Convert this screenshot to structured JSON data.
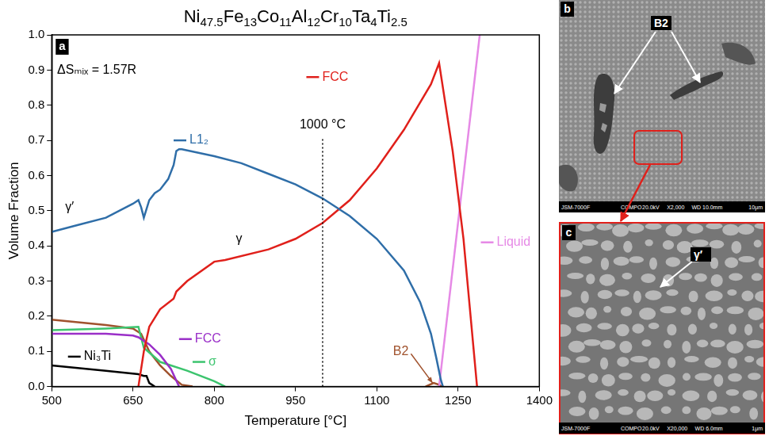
{
  "chart_data": {
    "type": "line",
    "title": "Ni47.5Fe13Co11Al12Cr10Ta4Ti2.5",
    "panel": "a",
    "x_label": "Temperature [°C]",
    "y_label": "Volume Fraction",
    "xlim": [
      500,
      1400
    ],
    "xticks": [
      500,
      650,
      800,
      950,
      1100,
      1250,
      1400
    ],
    "ylim": [
      0,
      1
    ],
    "yticks": [
      {
        "value": 0,
        "label": "0.0"
      },
      0.1,
      0.2,
      0.3,
      0.4,
      0.5,
      0.6,
      0.7,
      0.8,
      0.9,
      {
        "value": 1,
        "label": "1.0"
      }
    ],
    "grid": false,
    "series": [
      {
        "name": "L1₂",
        "color": "#2f6ea8",
        "label_at": [
          725,
          0.7
        ],
        "x": [
          500,
          550,
          600,
          650,
          660,
          665,
          670,
          680,
          690,
          700,
          715,
          725,
          730,
          735,
          740,
          800,
          850,
          900,
          950,
          1000,
          1050,
          1100,
          1150,
          1180,
          1200,
          1210,
          1218,
          1222
        ],
        "values": [
          0.44,
          0.46,
          0.48,
          0.52,
          0.53,
          0.51,
          0.48,
          0.53,
          0.55,
          0.56,
          0.59,
          0.63,
          0.67,
          0.675,
          0.675,
          0.655,
          0.635,
          0.605,
          0.575,
          0.535,
          0.485,
          0.42,
          0.33,
          0.24,
          0.15,
          0.08,
          0.02,
          0
        ]
      },
      {
        "name": "FCC",
        "color": "#e0201b",
        "label_at": [
          970,
          0.88
        ],
        "x": [
          660,
          670,
          680,
          700,
          725,
          730,
          750,
          800,
          820,
          900,
          950,
          1000,
          1050,
          1100,
          1150,
          1200,
          1215,
          1240,
          1260,
          1285
        ],
        "values": [
          0,
          0.1,
          0.17,
          0.22,
          0.25,
          0.27,
          0.3,
          0.355,
          0.36,
          0.39,
          0.42,
          0.465,
          0.53,
          0.62,
          0.73,
          0.86,
          0.92,
          0.67,
          0.42,
          0
        ]
      },
      {
        "name": "Liquid",
        "color": "#e68ae6",
        "label_at": [
          1292,
          0.41
        ],
        "x": [
          1215,
          1290
        ],
        "values": [
          0,
          1
        ]
      },
      {
        "name": "FCC",
        "color": "#9a2fc8",
        "label_at": [
          735,
          0.135
        ],
        "x": [
          500,
          600,
          650,
          660,
          680,
          700,
          720,
          735
        ],
        "values": [
          0.15,
          0.15,
          0.145,
          0.14,
          0.12,
          0.09,
          0.05,
          0
        ]
      },
      {
        "name": "σ",
        "color": "#3cc46e",
        "label_at": [
          760,
          0.07
        ],
        "x": [
          500,
          600,
          660,
          670,
          700,
          750,
          800,
          820
        ],
        "values": [
          0.16,
          0.165,
          0.17,
          0.11,
          0.07,
          0.045,
          0.015,
          0
        ]
      },
      {
        "name": "B2",
        "color": "#a0522d",
        "label_at": [
          1130,
          0.1
        ],
        "label_arrow_to": [
          1203,
          0.01
        ],
        "x": [
          500,
          600,
          650,
          665,
          680,
          700,
          720,
          740,
          760,
          975,
          1190,
          1205,
          1215,
          1220
        ],
        "values": [
          0.19,
          0.175,
          0.165,
          0.15,
          0.1,
          0.06,
          0.03,
          0.005,
          0,
          null,
          0,
          0.01,
          0.005,
          0
        ]
      },
      {
        "name": "Ni₃Ti",
        "color": "#000000",
        "label_at": [
          530,
          0.085
        ],
        "x": [
          500,
          600,
          660,
          670,
          675,
          680,
          690
        ],
        "values": [
          0.06,
          0.045,
          0.035,
          0.03,
          0.03,
          0.01,
          0
        ]
      }
    ],
    "annotations": [
      {
        "text": "ΔSₘᵢₓ = 1.57R",
        "x": 510,
        "y": 0.9
      },
      {
        "text": "1000 °C",
        "x": 1000,
        "y": 0.745,
        "vline_y": [
          0,
          0.71
        ]
      },
      {
        "text": "γ′",
        "x": 525,
        "y": 0.51
      },
      {
        "text": "γ",
        "x": 840,
        "y": 0.42
      }
    ]
  },
  "panels": [
    {
      "letter": "b",
      "labels": [
        "B2"
      ],
      "footer": [
        "JSM-7000F",
        "COMPO",
        "20.0kV",
        "X2,000",
        "WD 10.0mm",
        "10μm"
      ]
    },
    {
      "letter": "c",
      "labels": [
        "γ′"
      ],
      "footer": [
        "JSM-7000F",
        "COMPO",
        "20.0kV",
        "X20,000",
        "WD 6.0mm",
        "1μm"
      ]
    }
  ]
}
